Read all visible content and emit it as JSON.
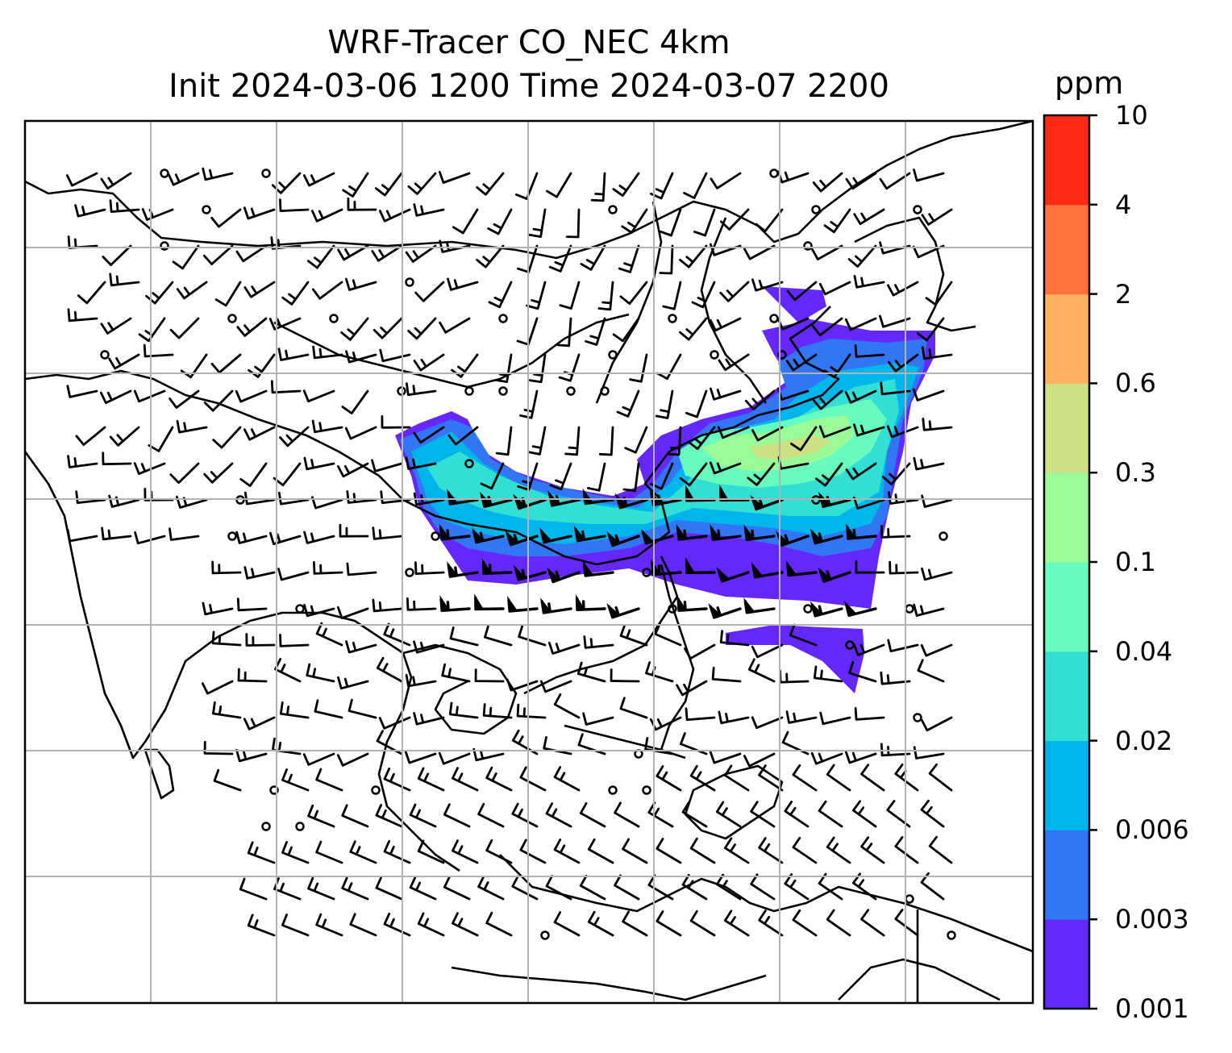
{
  "title": {
    "line1": "WRF-Tracer CO_NEC 4km",
    "line2": "Init 2024-03-06 1200 Time 2024-03-07 2200"
  },
  "colorbar": {
    "unit": "ppm",
    "levels": [
      "0.001",
      "0.003",
      "0.006",
      "0.02",
      "0.04",
      "0.1",
      "0.3",
      "0.6",
      "2",
      "4",
      "10"
    ],
    "colors": [
      "#6428fa",
      "#3275f5",
      "#00b4ec",
      "#31dfd4",
      "#68fbbe",
      "#9bfb97",
      "#cde184",
      "#ffb160",
      "#ff713d",
      "#ff2b15"
    ]
  },
  "map": {
    "gridlines": true,
    "content": "CO tracer concentration contours with wind barbs over East / Southeast Asia"
  }
}
